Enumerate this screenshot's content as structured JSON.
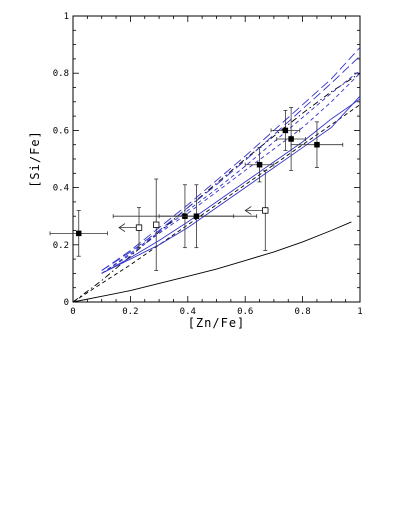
{
  "chart_data": {
    "type": "scatter",
    "title": "",
    "xlabel": "[Zn/Fe]",
    "ylabel": "[Si/Fe]",
    "xlim": [
      0,
      1
    ],
    "ylim": [
      0,
      1
    ],
    "grid": false,
    "x_ticks": [
      0,
      0.2,
      0.4,
      0.6,
      0.8,
      1
    ],
    "x_tick_labels": [
      "0",
      "0.2",
      "0.4",
      "0.6",
      "0.8",
      "1"
    ],
    "y_ticks": [
      0,
      0.2,
      0.4,
      0.6,
      0.8,
      1
    ],
    "y_tick_labels": [
      "0",
      "0.2",
      "0.4",
      "0.6",
      "0.8",
      "1"
    ],
    "filled_points": [
      {
        "x": 0.02,
        "y": 0.24,
        "xerr": 0.1,
        "yerr": 0.08
      },
      {
        "x": 0.39,
        "y": 0.3,
        "xerr": 0.25,
        "yerr": 0.11
      },
      {
        "x": 0.43,
        "y": 0.3,
        "xerr": 0.13,
        "yerr": 0.11
      },
      {
        "x": 0.65,
        "y": 0.48,
        "xerr": 0.05,
        "yerr": 0.06
      },
      {
        "x": 0.74,
        "y": 0.6,
        "xerr": 0.05,
        "yerr": 0.07
      },
      {
        "x": 0.76,
        "y": 0.57,
        "xerr": 0.05,
        "yerr": 0.11
      },
      {
        "x": 0.85,
        "y": 0.55,
        "xerr": 0.09,
        "yerr": 0.08
      }
    ],
    "open_points": [
      {
        "x": 0.23,
        "y": 0.26,
        "yerr": 0.07,
        "limit": "upper-x"
      },
      {
        "x": 0.29,
        "y": 0.27,
        "yerr": 0.16
      },
      {
        "x": 0.67,
        "y": 0.32,
        "yerr": 0.14,
        "limit": "upper-x"
      }
    ],
    "curves": [
      {
        "color": "#000000",
        "style": "solid",
        "x": [
          0,
          0.1,
          0.2,
          0.3,
          0.4,
          0.5,
          0.6,
          0.7,
          0.8,
          0.9,
          0.97
        ],
        "y": [
          0,
          0.02,
          0.04,
          0.065,
          0.09,
          0.115,
          0.145,
          0.175,
          0.21,
          0.25,
          0.28
        ]
      },
      {
        "color": "#000000",
        "style": "dashed",
        "x": [
          0,
          0.1,
          0.2,
          0.3,
          0.4,
          0.5,
          0.6,
          0.7,
          0.8,
          0.9,
          1
        ],
        "y": [
          0,
          0.065,
          0.13,
          0.2,
          0.27,
          0.34,
          0.41,
          0.48,
          0.55,
          0.62,
          0.69
        ]
      },
      {
        "color": "#000000",
        "style": "dashdot",
        "x": [
          0,
          0.1,
          0.2,
          0.3,
          0.4,
          0.5,
          0.6,
          0.7,
          0.8,
          0.9,
          1
        ],
        "y": [
          0,
          0.075,
          0.16,
          0.245,
          0.33,
          0.415,
          0.5,
          0.58,
          0.66,
          0.735,
          0.8
        ]
      },
      {
        "color": "#3333cc",
        "style": "solid",
        "x": [
          0.1,
          0.2,
          0.3,
          0.4,
          0.5,
          0.6,
          0.7,
          0.8,
          0.9,
          1
        ],
        "y": [
          0.1,
          0.15,
          0.2,
          0.26,
          0.33,
          0.4,
          0.47,
          0.54,
          0.61,
          0.72
        ]
      },
      {
        "color": "#3333cc",
        "style": "solid",
        "x": [
          0.1,
          0.2,
          0.3,
          0.4,
          0.5,
          0.6,
          0.7,
          0.8,
          0.9,
          1
        ],
        "y": [
          0.1,
          0.155,
          0.215,
          0.28,
          0.35,
          0.42,
          0.49,
          0.56,
          0.64,
          0.71
        ]
      },
      {
        "color": "#3333cc",
        "style": "dashed",
        "x": [
          0.1,
          0.2,
          0.3,
          0.4,
          0.5,
          0.6,
          0.7,
          0.8,
          0.9,
          1
        ],
        "y": [
          0.1,
          0.165,
          0.24,
          0.31,
          0.385,
          0.46,
          0.535,
          0.61,
          0.7,
          0.8
        ]
      },
      {
        "color": "#3333cc",
        "style": "dashed",
        "x": [
          0.1,
          0.2,
          0.3,
          0.4,
          0.5,
          0.6,
          0.7,
          0.8,
          0.9,
          1
        ],
        "y": [
          0.1,
          0.17,
          0.245,
          0.32,
          0.395,
          0.475,
          0.56,
          0.645,
          0.73,
          0.81
        ]
      },
      {
        "color": "#3333cc",
        "style": "longdash",
        "x": [
          0.1,
          0.2,
          0.3,
          0.4,
          0.5,
          0.6,
          0.7,
          0.8,
          0.9,
          1
        ],
        "y": [
          0.11,
          0.18,
          0.26,
          0.34,
          0.425,
          0.51,
          0.6,
          0.69,
          0.78,
          0.89
        ]
      },
      {
        "color": "#3333cc",
        "style": "longdash",
        "x": [
          0.1,
          0.2,
          0.3,
          0.4,
          0.5,
          0.6,
          0.7,
          0.8,
          0.9,
          1
        ],
        "y": [
          0.11,
          0.175,
          0.25,
          0.33,
          0.41,
          0.495,
          0.585,
          0.675,
          0.765,
          0.86
        ]
      }
    ]
  }
}
